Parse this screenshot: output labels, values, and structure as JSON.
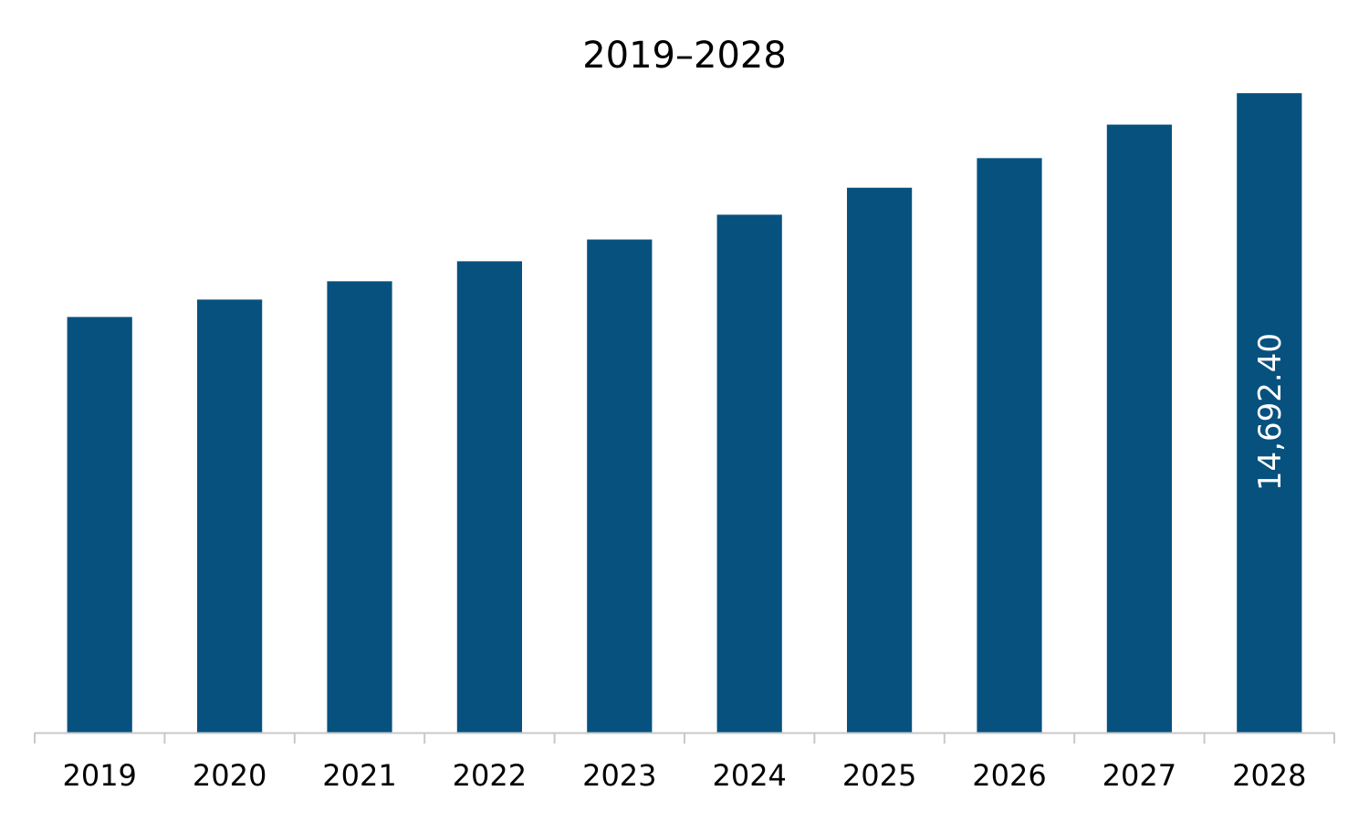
{
  "chart_data": {
    "type": "bar",
    "title": "2019–2028",
    "xlabel": "",
    "ylabel": "",
    "categories": [
      "2019",
      "2020",
      "2021",
      "2022",
      "2023",
      "2024",
      "2025",
      "2026",
      "2027",
      "2028"
    ],
    "values": [
      9550,
      9950,
      10370,
      10830,
      11330,
      11900,
      12520,
      13200,
      13970,
      14692.4
    ],
    "data_labels": [
      "",
      "",
      "",
      "",
      "",
      "",
      "",
      "",
      "",
      "14,692.40"
    ],
    "ylim": [
      0,
      14800
    ],
    "grid": false,
    "legend": "none",
    "colors": {
      "bar": "#07517f",
      "axis": "#c8c8c8",
      "data_label": "#ffffff",
      "text": "#000000"
    }
  }
}
